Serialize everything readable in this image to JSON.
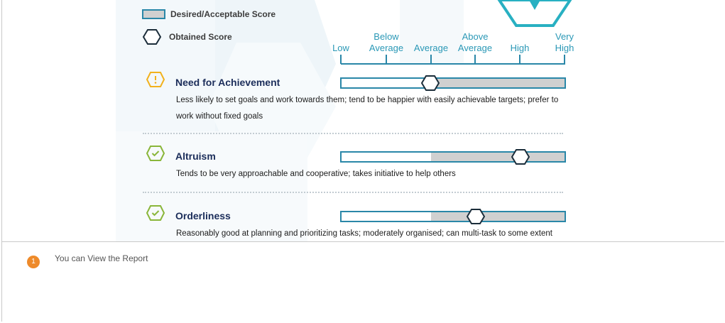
{
  "legend": {
    "desired_label": "Desired/Acceptable Score",
    "obtained_label": "Obtained Score"
  },
  "scale": {
    "labels": [
      {
        "line1": "",
        "line2": "Low"
      },
      {
        "line1": "Below",
        "line2": "Average"
      },
      {
        "line1": "",
        "line2": "Average"
      },
      {
        "line1": "Above",
        "line2": "Average"
      },
      {
        "line1": "",
        "line2": "High"
      },
      {
        "line1": "Very",
        "line2": "High"
      }
    ]
  },
  "traits": [
    {
      "title": "Need for Achievement",
      "status_icon": "warning-icon",
      "status_color": "#f2b21d",
      "description": "Less likely to set goals and work towards them; tend to be happier with easily achievable targets; prefer to work without fixed goals",
      "desired_from": 0.4,
      "obtained": 0.4
    },
    {
      "title": "Altruism",
      "status_icon": "check-icon",
      "status_color": "#8ab63a",
      "description": "Tends to be very approachable and cooperative; takes initiative to help others",
      "desired_from": 0.4,
      "obtained": 0.8
    },
    {
      "title": "Orderliness",
      "status_icon": "check-icon",
      "status_color": "#8ab63a",
      "description": "Reasonably good at planning and prioritizing tasks; moderately organised; can multi-task to some extent",
      "desired_from": 0.4,
      "obtained": 0.6
    }
  ],
  "colors": {
    "accent": "#2a98b6",
    "bar_border": "#2a87a8",
    "desired_fill": "#d0d0d0",
    "marker": "#1b2d3a",
    "step_badge": "#ee8a2a"
  },
  "footer": {
    "step_number": "1",
    "step_text": "You can View the Report"
  }
}
